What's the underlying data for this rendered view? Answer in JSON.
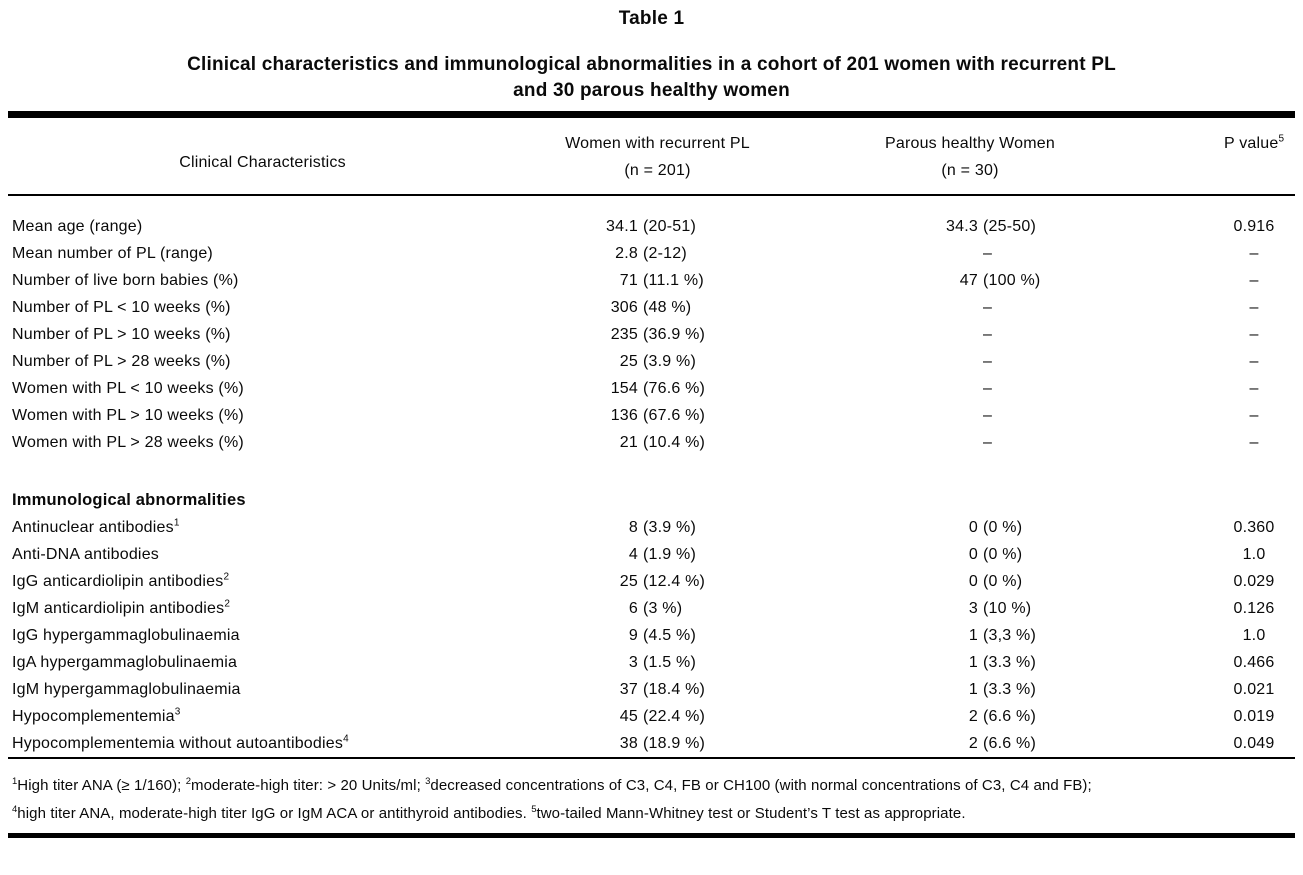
{
  "table_label": "Table 1",
  "title": {
    "line1": "Clinical characteristics and immunological abnormalities in a cohort of 201 women with recurrent PL",
    "line2": "and 30 parous healthy women"
  },
  "columns": {
    "c1": "Clinical Characteristics",
    "c2_line1": "Women with recurrent PL",
    "c2_line2": "(n = 201)",
    "c3_line1": "Parous healthy Women",
    "c3_line2": "(n = 30)",
    "c4": "P value",
    "c4_sup": "5"
  },
  "sections": [
    {
      "header": null,
      "rows": [
        {
          "label": "Mean age (range)",
          "sup": "",
          "rpl": "34.1 (20-51)",
          "phw": "34.3 (25-50)",
          "p": "0.916"
        },
        {
          "label": "Mean number of PL (range)",
          "sup": "",
          "rpl": "2.8 (2-12)",
          "phw": "–",
          "p": "–"
        },
        {
          "label": "Number of live born babies (%)",
          "sup": "",
          "rpl": "71 (11.1 %)",
          "phw": "47 (100 %)",
          "p": "–"
        },
        {
          "label": "Number of PL < 10 weeks (%)",
          "sup": "",
          "rpl": "306 (48 %)",
          "phw": "–",
          "p": "–"
        },
        {
          "label": "Number of PL > 10 weeks (%)",
          "sup": "",
          "rpl": "235 (36.9 %)",
          "phw": "–",
          "p": "–"
        },
        {
          "label": "Number of PL > 28 weeks (%)",
          "sup": "",
          "rpl": "25 (3.9 %)",
          "phw": "–",
          "p": "–"
        },
        {
          "label": "Women with PL < 10 weeks (%)",
          "sup": "",
          "rpl": "154 (76.6 %)",
          "phw": "–",
          "p": "–"
        },
        {
          "label": "Women with PL > 10 weeks (%)",
          "sup": "",
          "rpl": "136 (67.6 %)",
          "phw": "–",
          "p": "–"
        },
        {
          "label": "Women with PL > 28 weeks (%)",
          "sup": "",
          "rpl": "21 (10.4 %)",
          "phw": "–",
          "p": "–"
        }
      ]
    },
    {
      "header": "Immunological abnormalities",
      "rows": [
        {
          "label": "Antinuclear antibodies",
          "sup": "1",
          "rpl": "8 (3.9 %)",
          "phw": "0 (0 %)",
          "p": "0.360"
        },
        {
          "label": "Anti-DNA antibodies",
          "sup": "",
          "rpl": "4 (1.9 %)",
          "phw": "0 (0 %)",
          "p": "1.0"
        },
        {
          "label": "IgG anticardiolipin antibodies",
          "sup": "2",
          "rpl": "25 (12.4 %)",
          "phw": "0 (0 %)",
          "p": "0.029"
        },
        {
          "label": "IgM anticardiolipin antibodies",
          "sup": "2",
          "rpl": "6 (3 %)",
          "phw": "3 (10 %)",
          "p": "0.126"
        },
        {
          "label": "IgG hypergammaglobulinaemia",
          "sup": "",
          "rpl": "9 (4.5 %)",
          "phw": "1 (3,3 %)",
          "p": "1.0"
        },
        {
          "label": "IgA hypergammaglobulinaemia",
          "sup": "",
          "rpl": "3 (1.5 %)",
          "phw": "1 (3.3 %)",
          "p": "0.466"
        },
        {
          "label": "IgM hypergammaglobulinaemia",
          "sup": "",
          "rpl": "37 (18.4 %)",
          "phw": "1 (3.3 %)",
          "p": "0.021"
        },
        {
          "label": "Hypocomplementemia",
          "sup": "3",
          "rpl": "45 (22.4 %)",
          "phw": "2 (6.6 %)",
          "p": "0.019"
        },
        {
          "label": "Hypocomplementemia without autoantibodies",
          "sup": "4",
          "rpl": "38 (18.9 %)",
          "phw": "2 (6.6 %)",
          "p": "0.049"
        }
      ]
    }
  ],
  "footnotes": [
    [
      {
        "sup": "1",
        "text": "High titer ANA (≥ 1/160); "
      },
      {
        "sup": "2",
        "text": "moderate-high titer: > 20 Units/ml; "
      },
      {
        "sup": "3",
        "text": "decreased concentrations of C3, C4, FB or CH100 (with normal concentrations of C3, C4 and FB);"
      }
    ],
    [
      {
        "sup": "4",
        "text": "high titer ANA, moderate-high titer IgG or IgM ACA or antithyroid antibodies. "
      },
      {
        "sup": "5",
        "text": "two-tailed Mann-Whitney test or Student’s T test as appropriate."
      }
    ]
  ]
}
